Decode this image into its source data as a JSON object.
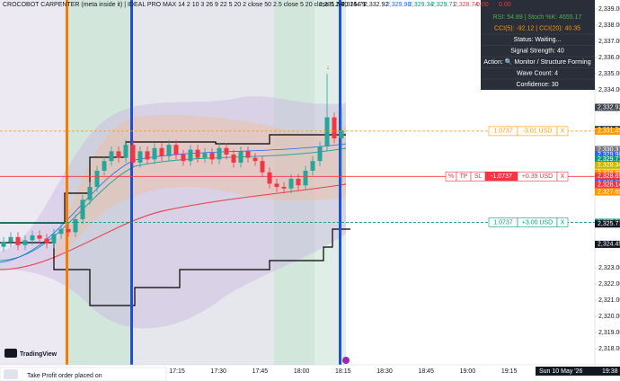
{
  "header": {
    "title": "CROCOBOT CARPENTER (meta inside it) | IDEAL PRO MAX 14 2 10 3 26 9 22 5 20 2 close 50 2.5 close 5 20 close 5 2 40 144 9",
    "values": [
      {
        "text": "2,331.54",
        "color": "#131722"
      },
      {
        "text": "2,325.71",
        "color": "#131722"
      },
      {
        "text": "2,332.92",
        "color": "#131722"
      },
      {
        "text": "2,329.98",
        "color": "#2962ff"
      },
      {
        "text": "2,329.34",
        "color": "#089981"
      },
      {
        "text": "2,329.71",
        "color": "#089981"
      },
      {
        "text": "2,328.74",
        "color": "#f23645"
      },
      {
        "text": "0.00",
        "color": "#f23645"
      },
      {
        "text": "0.00",
        "color": "#f23645"
      }
    ]
  },
  "info_panel": {
    "lines": [
      {
        "text": "RSI: 54.89 | Stoch %K: 4655.17",
        "color": "#4caf50"
      },
      {
        "text": "CCI(5): -92.12 | CCI(20): 40.35",
        "color": "#ff9800"
      },
      {
        "text": "Status: Waiting...",
        "color": "#ffffff"
      },
      {
        "text": "Signal Strength: 40",
        "color": "#ffffff"
      },
      {
        "text": "Action: 🔍 Monitor / Structure Forming",
        "color": "#ffffff"
      },
      {
        "text": "Wave Count: 4",
        "color": "#ffffff"
      },
      {
        "text": "Confidence: 30",
        "color": "#ffffff"
      }
    ]
  },
  "chart": {
    "type": "candlestick",
    "up_color": "#26a69a",
    "down_color": "#f23645",
    "ylim": [
      2317,
      2339.5
    ],
    "open": [
      2324.3,
      2324.6,
      2324.9,
      2324.4,
      2324.7,
      2325.0,
      2324.8,
      2324.5,
      2325.1,
      2325.4,
      2325.2,
      2326.0,
      2327.2,
      2328.0,
      2329.0,
      2329.6,
      2330.2,
      2329.8,
      2330.6,
      2329.5,
      2330.2,
      2329.7,
      2330.4,
      2329.9,
      2330.6,
      2330.0,
      2329.6,
      2330.3,
      2329.8,
      2330.1,
      2329.7,
      2330.4,
      2330.0,
      2329.5,
      2330.2,
      2329.8,
      2329.6,
      2328.9,
      2328.2,
      2328.0,
      2327.9,
      2328.5,
      2328.1,
      2329.0,
      2329.6,
      2330.5,
      2332.3,
      2331.0
    ],
    "high": [
      2324.9,
      2325.2,
      2325.2,
      2325.0,
      2325.3,
      2325.3,
      2325.1,
      2325.4,
      2325.7,
      2325.7,
      2326.3,
      2327.5,
      2328.3,
      2329.3,
      2329.9,
      2330.5,
      2330.5,
      2330.9,
      2330.9,
      2330.5,
      2330.5,
      2330.7,
      2330.7,
      2330.9,
      2330.9,
      2330.3,
      2330.6,
      2330.6,
      2330.4,
      2330.4,
      2330.7,
      2330.7,
      2330.3,
      2330.5,
      2330.5,
      2330.1,
      2329.9,
      2329.2,
      2328.5,
      2328.3,
      2328.8,
      2328.8,
      2329.3,
      2329.9,
      2330.8,
      2335.0,
      2332.6,
      2332.9
    ],
    "low": [
      2324.0,
      2324.3,
      2324.1,
      2324.1,
      2324.4,
      2324.5,
      2324.2,
      2324.2,
      2324.8,
      2324.9,
      2324.9,
      2325.7,
      2326.9,
      2327.7,
      2328.7,
      2329.3,
      2329.5,
      2329.5,
      2329.2,
      2329.2,
      2329.4,
      2329.4,
      2329.6,
      2329.6,
      2329.7,
      2329.3,
      2329.3,
      2329.5,
      2329.5,
      2329.4,
      2329.4,
      2329.7,
      2329.2,
      2329.2,
      2329.5,
      2329.3,
      2328.6,
      2327.9,
      2327.7,
      2327.6,
      2327.6,
      2327.8,
      2327.8,
      2328.7,
      2329.3,
      2330.2,
      2330.7,
      2328.3
    ],
    "close": [
      2324.6,
      2324.9,
      2324.4,
      2324.7,
      2325.0,
      2324.8,
      2324.5,
      2325.1,
      2325.4,
      2325.2,
      2326.0,
      2327.2,
      2328.0,
      2329.0,
      2329.6,
      2330.2,
      2329.8,
      2330.6,
      2329.5,
      2330.2,
      2329.7,
      2330.4,
      2329.9,
      2330.6,
      2330.0,
      2329.6,
      2330.3,
      2329.8,
      2330.1,
      2329.7,
      2330.4,
      2330.0,
      2329.5,
      2330.2,
      2329.8,
      2329.6,
      2328.9,
      2328.2,
      2328.0,
      2327.9,
      2328.5,
      2328.1,
      2329.0,
      2329.6,
      2330.5,
      2332.3,
      2331.0,
      2331.5
    ],
    "yticks": [
      {
        "value": 2339,
        "label": "2,339.00"
      },
      {
        "value": 2338,
        "label": "2,338.00"
      },
      {
        "value": 2337,
        "label": "2,337.00"
      },
      {
        "value": 2336,
        "label": "2,336.00"
      },
      {
        "value": 2335,
        "label": "2,335.00"
      },
      {
        "value": 2334,
        "label": "2,334.00"
      },
      {
        "value": 2323,
        "label": "2,323.00"
      },
      {
        "value": 2322,
        "label": "2,322.00"
      },
      {
        "value": 2321,
        "label": "2,321.00"
      },
      {
        "value": 2320,
        "label": "2,320.00"
      },
      {
        "value": 2319,
        "label": "2,319.00"
      },
      {
        "value": 2318,
        "label": "2,318.00"
      }
    ],
    "price_labels": [
      {
        "value": 2332.92,
        "label": "2,332.92",
        "color": "#434651"
      },
      {
        "value": 2331.54,
        "label": "2,331.54",
        "color": "#131722"
      },
      {
        "value": 2331.45,
        "label": "2,331.45",
        "color": "#ff9800"
      },
      {
        "value": 2330.31,
        "label": "2,330.31",
        "color": "#787b86"
      },
      {
        "value": 2329.98,
        "label": "2,329.98",
        "color": "#2962ff"
      },
      {
        "value": 2329.71,
        "label": "2,329.71",
        "color": "#089981"
      },
      {
        "value": 2329.34,
        "label": "2,329.34",
        "color": "#c9b800"
      },
      {
        "value": 2328.86,
        "label": "2,328.86",
        "color": "#ff9800"
      },
      {
        "value": 2328.65,
        "label": "2,328.65",
        "color": "#f23645"
      },
      {
        "value": 2328.25,
        "label": "2,328.25",
        "color": "#2962ff"
      },
      {
        "value": 2328.14,
        "label": "2,328.14",
        "color": "#f23645"
      },
      {
        "value": 2327.69,
        "label": "2,327.69",
        "color": "#ff9800"
      },
      {
        "value": 2325.81,
        "label": "2,325.81",
        "color": "#089981"
      },
      {
        "value": 2325.71,
        "label": "2,325.71",
        "color": "#131722"
      },
      {
        "value": 2324.45,
        "label": "2,324.45",
        "color": "#131722"
      }
    ],
    "positions": [
      {
        "price": 2331.45,
        "color": "#ff9800",
        "texts": [
          "1.0737",
          "-3.01 USD",
          "X"
        ]
      },
      {
        "price": 2328.65,
        "color": "#f23645",
        "texts": [
          "%",
          "TP",
          "SL",
          "-1.0737",
          "+0.39 USD",
          "X"
        ]
      },
      {
        "price": 2325.81,
        "color": "#089981",
        "texts": [
          "1.0737",
          "+3.00 USD",
          "X"
        ]
      }
    ],
    "time_labels": [
      "17:15",
      "17:30",
      "17:45",
      "18:00",
      "18:15",
      "18:30",
      "18:45",
      "19:00",
      "19:15"
    ],
    "date_label": "Sun 10 May '26",
    "clock_label": "19:38"
  },
  "branding": "TradingView",
  "toast": "Take Profit order placed on"
}
